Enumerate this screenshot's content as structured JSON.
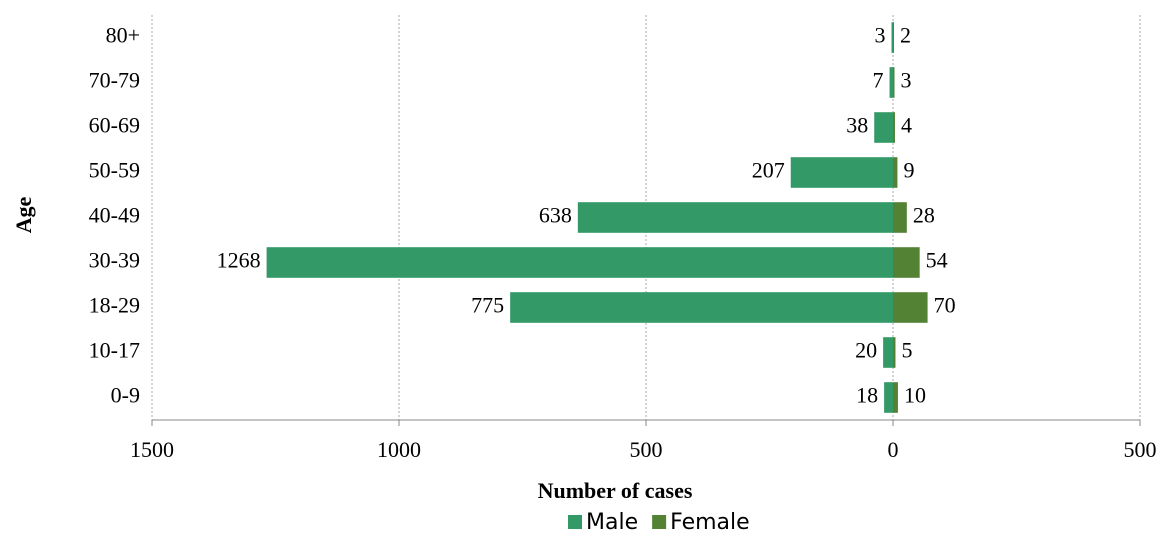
{
  "chart_data": {
    "type": "pyramid",
    "categories": [
      "80+",
      "70-79",
      "60-69",
      "50-59",
      "40-49",
      "30-39",
      "18-29",
      "10-17",
      "0-9"
    ],
    "series": [
      {
        "name": "Male",
        "color": "#339966",
        "side": "left",
        "values": [
          3,
          7,
          38,
          207,
          638,
          1268,
          775,
          20,
          18
        ]
      },
      {
        "name": "Female",
        "color": "#548235",
        "side": "right",
        "values": [
          2,
          3,
          4,
          9,
          28,
          54,
          70,
          5,
          10
        ]
      }
    ],
    "xlim": [
      -1500,
      500
    ],
    "xticks": [
      {
        "value": -1500,
        "label": "1500"
      },
      {
        "value": -1000,
        "label": "1000"
      },
      {
        "value": -500,
        "label": "500"
      },
      0,
      500
    ],
    "x_label": "Number of cases",
    "y_label": "Age",
    "grid": true,
    "legend": "bottom"
  }
}
